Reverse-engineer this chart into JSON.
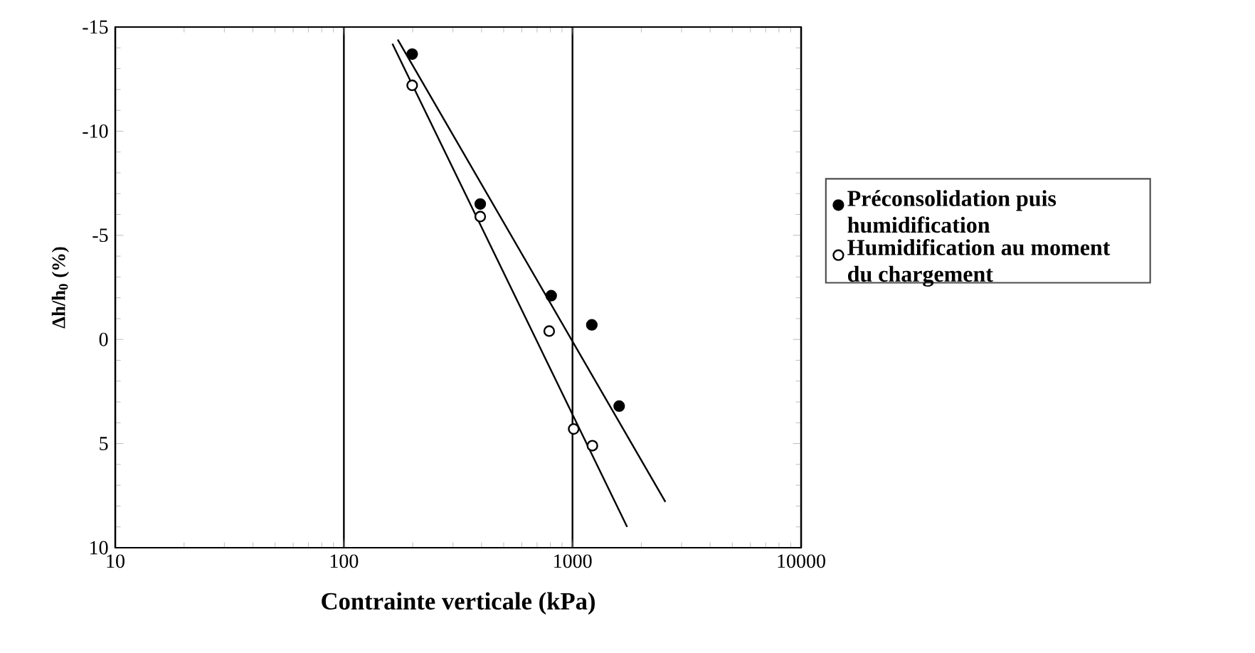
{
  "chart_data": {
    "type": "scatter",
    "xlabel": "Contrainte verticale (kPa)",
    "ylabel": "Δh/h$_{0}$ (%)",
    "log": "x",
    "xlim": [
      10,
      10000
    ],
    "xticks": [
      10,
      100,
      1000,
      10000
    ],
    "ylim": [
      10,
      -15
    ],
    "yticks": [
      -15,
      -10,
      -5,
      0,
      5,
      10
    ],
    "grid": "x",
    "legend": "right",
    "marker": "circle",
    "series": [
      {
        "name": "Préconsolidation puis humidification",
        "color": "#000000",
        "x": [
          199,
          395,
          807,
          1215,
          1600
        ],
        "values": [
          -13.7,
          -6.5,
          -2.1,
          -0.7,
          3.2
        ]
      },
      {
        "name": "Humidification au moment du chargement",
        "color": "#ffffff",
        "x": [
          199,
          395,
          791,
          1012,
          1222
        ],
        "values": [
          -12.2,
          -5.9,
          -0.4,
          4.3,
          5.1
        ]
      },
      {
        "type": "line",
        "color": "#000000",
        "marker": "none",
        "x": [
          172,
          2550
        ],
        "values": [
          -14.4,
          7.8
        ]
      },
      {
        "type": "line",
        "color": "#000000",
        "marker": "none",
        "x": [
          163,
          1734
        ],
        "values": [
          -14.2,
          9.0
        ]
      }
    ]
  }
}
